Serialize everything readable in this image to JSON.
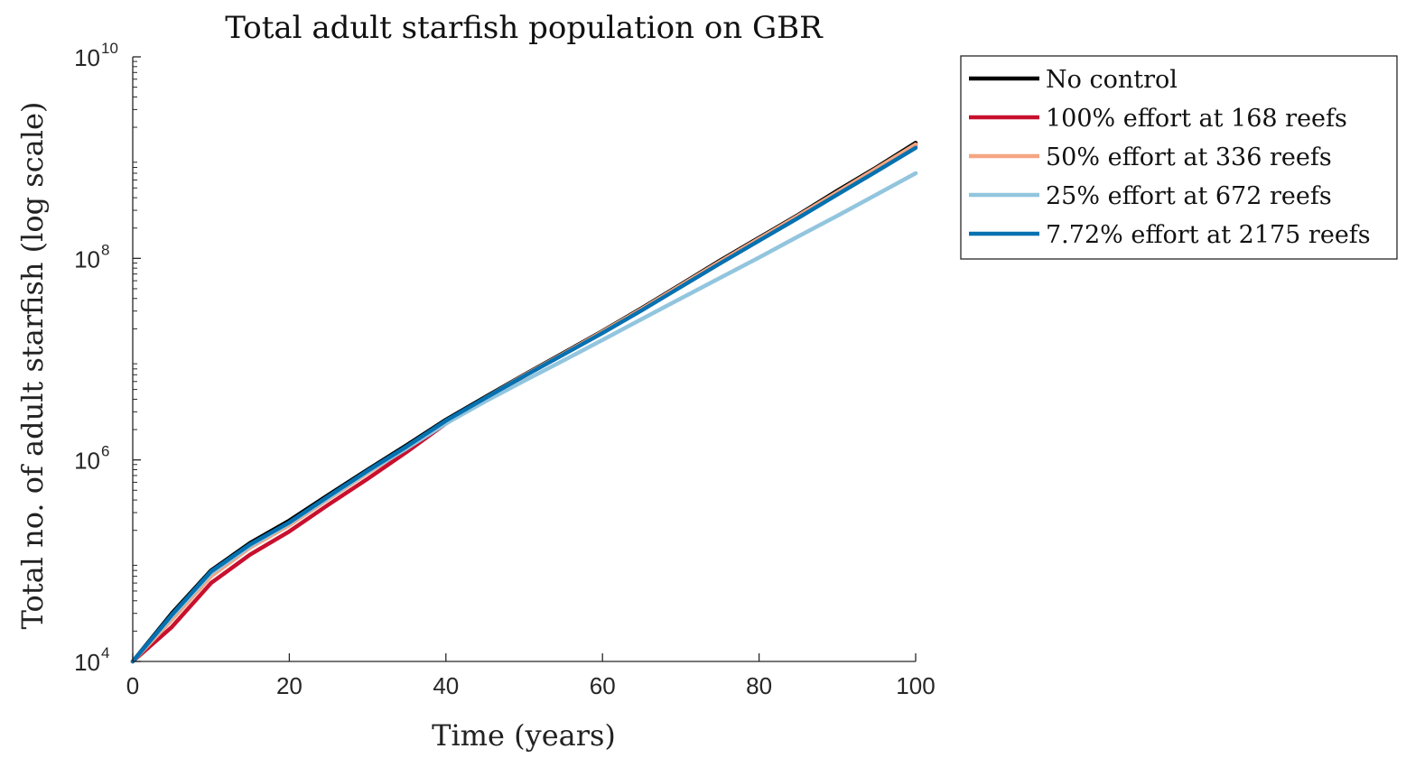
{
  "chart_data": {
    "type": "line",
    "title": "Total adult starfish population on GBR",
    "xlabel": "Time (years)",
    "ylabel": "Total no. of adult starfish (log scale)",
    "xlim": [
      0,
      100
    ],
    "ylim": [
      10000,
      10000000000
    ],
    "yscale": "log",
    "grid": false,
    "legend_position": "outside-right",
    "x_ticks": [
      "0",
      "20",
      "40",
      "60",
      "80",
      "100"
    ],
    "y_ticks": [
      {
        "base": "10",
        "exp": "4"
      },
      {
        "base": "10",
        "exp": "6"
      },
      {
        "base": "10",
        "exp": "8"
      },
      {
        "base": "10",
        "exp": "10"
      }
    ],
    "x": [
      0,
      5,
      10,
      15,
      20,
      25,
      30,
      35,
      40,
      45,
      50,
      55,
      60,
      65,
      70,
      75,
      80,
      85,
      90,
      95,
      100
    ],
    "series": [
      {
        "name": "No control",
        "color": "#000000",
        "values": [
          10000,
          30000,
          80000,
          150000,
          250000,
          450000,
          800000,
          1400000,
          2500000,
          4200000,
          7000000,
          11500000,
          19000000,
          32000000,
          55000000,
          95000000,
          160000000,
          270000000,
          470000000,
          800000000,
          1400000000
        ]
      },
      {
        "name": "100% effort at 168 reefs",
        "color": "#c8102e",
        "values": [
          10000,
          22000,
          60000,
          115000,
          195000,
          360000,
          650000,
          1200000,
          2300000,
          4000000,
          6800000,
          11200000,
          18500000,
          31000000,
          53000000,
          92000000,
          155000000,
          260000000,
          450000000,
          770000000,
          1330000000
        ]
      },
      {
        "name": "50% effort at 336 reefs",
        "color": "#f4a582",
        "values": [
          10000,
          26000,
          70000,
          135000,
          225000,
          410000,
          740000,
          1320000,
          2400000,
          4100000,
          6900000,
          11300000,
          18700000,
          31500000,
          54000000,
          93000000,
          157000000,
          265000000,
          455000000,
          780000000,
          1350000000
        ]
      },
      {
        "name": "25% effort at 672 reefs",
        "color": "#92c5de",
        "values": [
          10000,
          28000,
          75000,
          140000,
          235000,
          420000,
          760000,
          1300000,
          2300000,
          3800000,
          6100000,
          9700000,
          15500000,
          25000000,
          40000000,
          64000000,
          102000000,
          165000000,
          265000000,
          430000000,
          700000000
        ]
      },
      {
        "name": "7.72% effort at 2175 reefs",
        "color": "#0571b0",
        "values": [
          10000,
          29000,
          78000,
          145000,
          240000,
          435000,
          780000,
          1360000,
          2450000,
          4100000,
          6800000,
          11100000,
          18200000,
          30500000,
          52000000,
          89000000,
          150000000,
          252000000,
          430000000,
          730000000,
          1250000000
        ]
      }
    ]
  }
}
